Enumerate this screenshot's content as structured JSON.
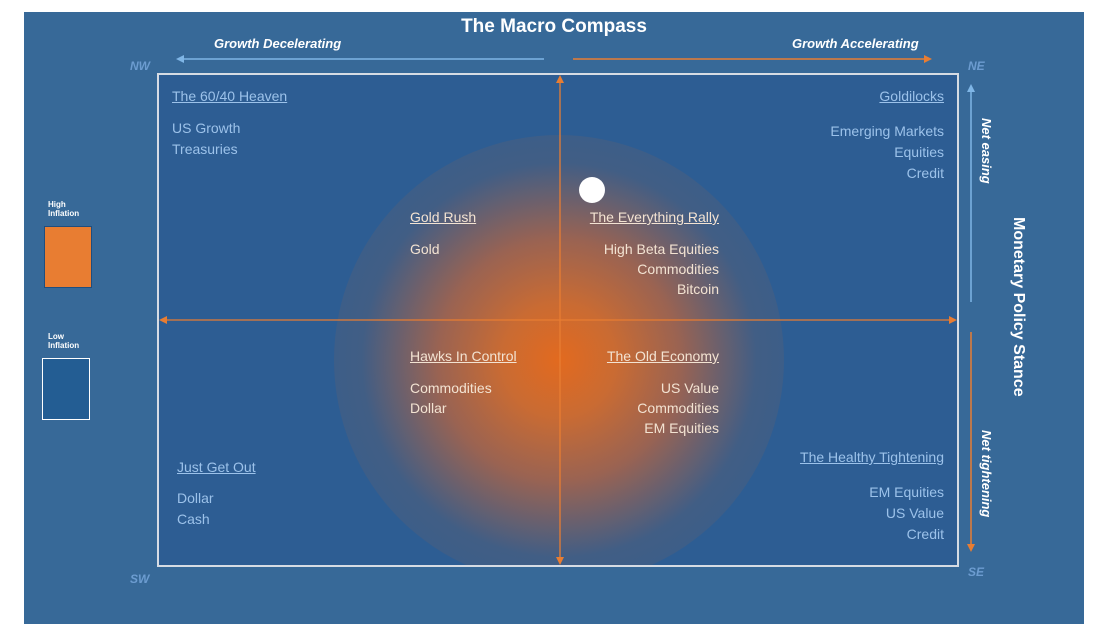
{
  "title": "The Macro Compass",
  "growth": {
    "left": "Growth Decelerating",
    "right": "Growth Accelerating"
  },
  "corners": {
    "nw": "NW",
    "ne": "NE",
    "sw": "SW",
    "se": "SE"
  },
  "monetary": {
    "label": "Monetary Policy Stance",
    "easing": "Net easing",
    "tightening": "Net tightening"
  },
  "legend": {
    "high": {
      "line1": "High",
      "line2": "Inflation",
      "color": "#e87d32"
    },
    "low": {
      "line1": "Low",
      "line2": "Inflation",
      "color": "#235d93"
    }
  },
  "quadrants": {
    "nw": {
      "title": "The 60/40 Heaven",
      "items": [
        "US Growth",
        "Treasuries"
      ]
    },
    "ne": {
      "title": "Goldilocks",
      "items": [
        "Emerging Markets",
        "Equities",
        "Credit"
      ]
    },
    "sw": {
      "title": "Just Get Out",
      "items": [
        "Dollar",
        "Cash"
      ]
    },
    "se": {
      "title": "The Healthy Tightening",
      "items": [
        "EM Equities",
        "US Value",
        "Credit"
      ]
    }
  },
  "center": {
    "nw": {
      "title": "Gold Rush",
      "items": [
        "Gold"
      ]
    },
    "ne": {
      "title": "The Everything Rally",
      "items": [
        "High Beta Equities",
        "Commodities",
        "Bitcoin"
      ]
    },
    "sw": {
      "title": "Hawks In Control",
      "items": [
        "Commodities",
        "Dollar"
      ]
    },
    "se": {
      "title": "The Old Economy",
      "items": [
        "US Value",
        "Commodities",
        "EM Equities"
      ]
    }
  },
  "colors": {
    "background": "#376998",
    "arrow": "#e87d32",
    "easingArrow": "#7fb6e6"
  }
}
